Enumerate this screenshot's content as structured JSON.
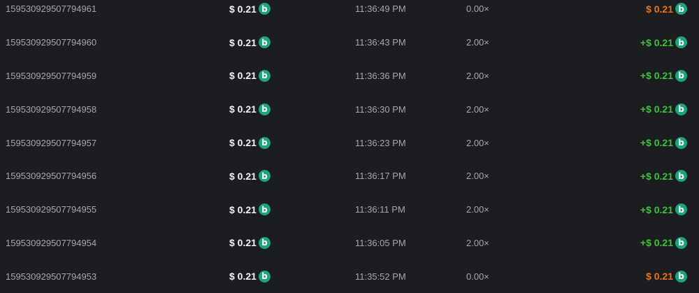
{
  "colors": {
    "win": "#3fc33a",
    "loss": "#e8741b",
    "coin": "#1fa37a"
  },
  "coin_icon": "bc-coin-icon",
  "rows": [
    {
      "id": "159530929507794961",
      "amount": "$ 0.21",
      "time": "11:36:49 PM",
      "multiplier": "0.00×",
      "payout": "$ 0.21",
      "result": "loss"
    },
    {
      "id": "159530929507794960",
      "amount": "$ 0.21",
      "time": "11:36:43 PM",
      "multiplier": "2.00×",
      "payout": "+$ 0.21",
      "result": "win"
    },
    {
      "id": "159530929507794959",
      "amount": "$ 0.21",
      "time": "11:36:36 PM",
      "multiplier": "2.00×",
      "payout": "+$ 0.21",
      "result": "win"
    },
    {
      "id": "159530929507794958",
      "amount": "$ 0.21",
      "time": "11:36:30 PM",
      "multiplier": "2.00×",
      "payout": "+$ 0.21",
      "result": "win"
    },
    {
      "id": "159530929507794957",
      "amount": "$ 0.21",
      "time": "11:36:23 PM",
      "multiplier": "2.00×",
      "payout": "+$ 0.21",
      "result": "win"
    },
    {
      "id": "159530929507794956",
      "amount": "$ 0.21",
      "time": "11:36:17 PM",
      "multiplier": "2.00×",
      "payout": "+$ 0.21",
      "result": "win"
    },
    {
      "id": "159530929507794955",
      "amount": "$ 0.21",
      "time": "11:36:11 PM",
      "multiplier": "2.00×",
      "payout": "+$ 0.21",
      "result": "win"
    },
    {
      "id": "159530929507794954",
      "amount": "$ 0.21",
      "time": "11:36:05 PM",
      "multiplier": "2.00×",
      "payout": "+$ 0.21",
      "result": "win"
    },
    {
      "id": "159530929507794953",
      "amount": "$ 0.21",
      "time": "11:35:52 PM",
      "multiplier": "0.00×",
      "payout": "$ 0.21",
      "result": "loss"
    }
  ]
}
